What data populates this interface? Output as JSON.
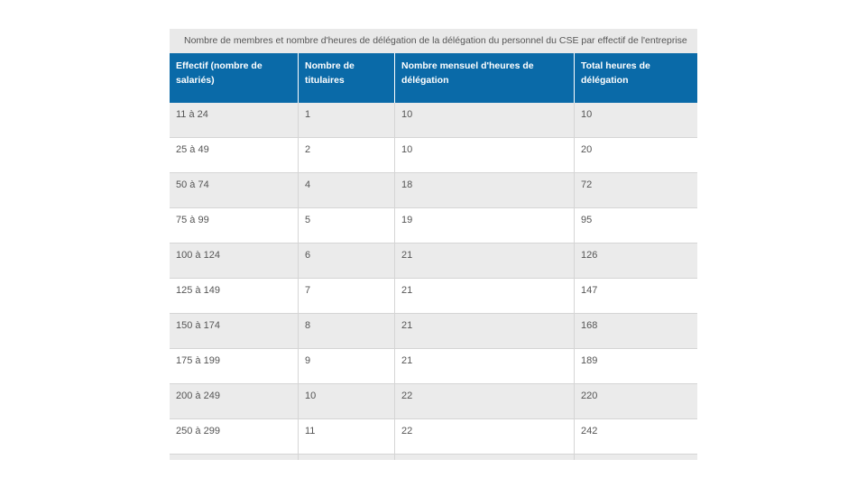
{
  "table": {
    "title": "Nombre de membres et nombre d'heures de délégation de la délégation du personnel du CSE par effectif de l'entreprise",
    "header": [
      "Effectif (nombre de salariés)",
      "Nombre de titulaires",
      "Nombre mensuel d'heures de délégation",
      "Total heures de délégation"
    ],
    "rows": [
      [
        "11 à 24",
        "1",
        "10",
        "10"
      ],
      [
        "25 à 49",
        "2",
        "10",
        "20"
      ],
      [
        "50 à 74",
        "4",
        "18",
        "72"
      ],
      [
        "75 à 99",
        "5",
        "19",
        "95"
      ],
      [
        "100 à 124",
        "6",
        "21",
        "126"
      ],
      [
        "125 à 149",
        "7",
        "21",
        "147"
      ],
      [
        "150 à 174",
        "8",
        "21",
        "168"
      ],
      [
        "175 à 199",
        "9",
        "21",
        "189"
      ],
      [
        "200 à 249",
        "10",
        "22",
        "220"
      ],
      [
        "250 à 299",
        "11",
        "22",
        "242"
      ]
    ]
  }
}
